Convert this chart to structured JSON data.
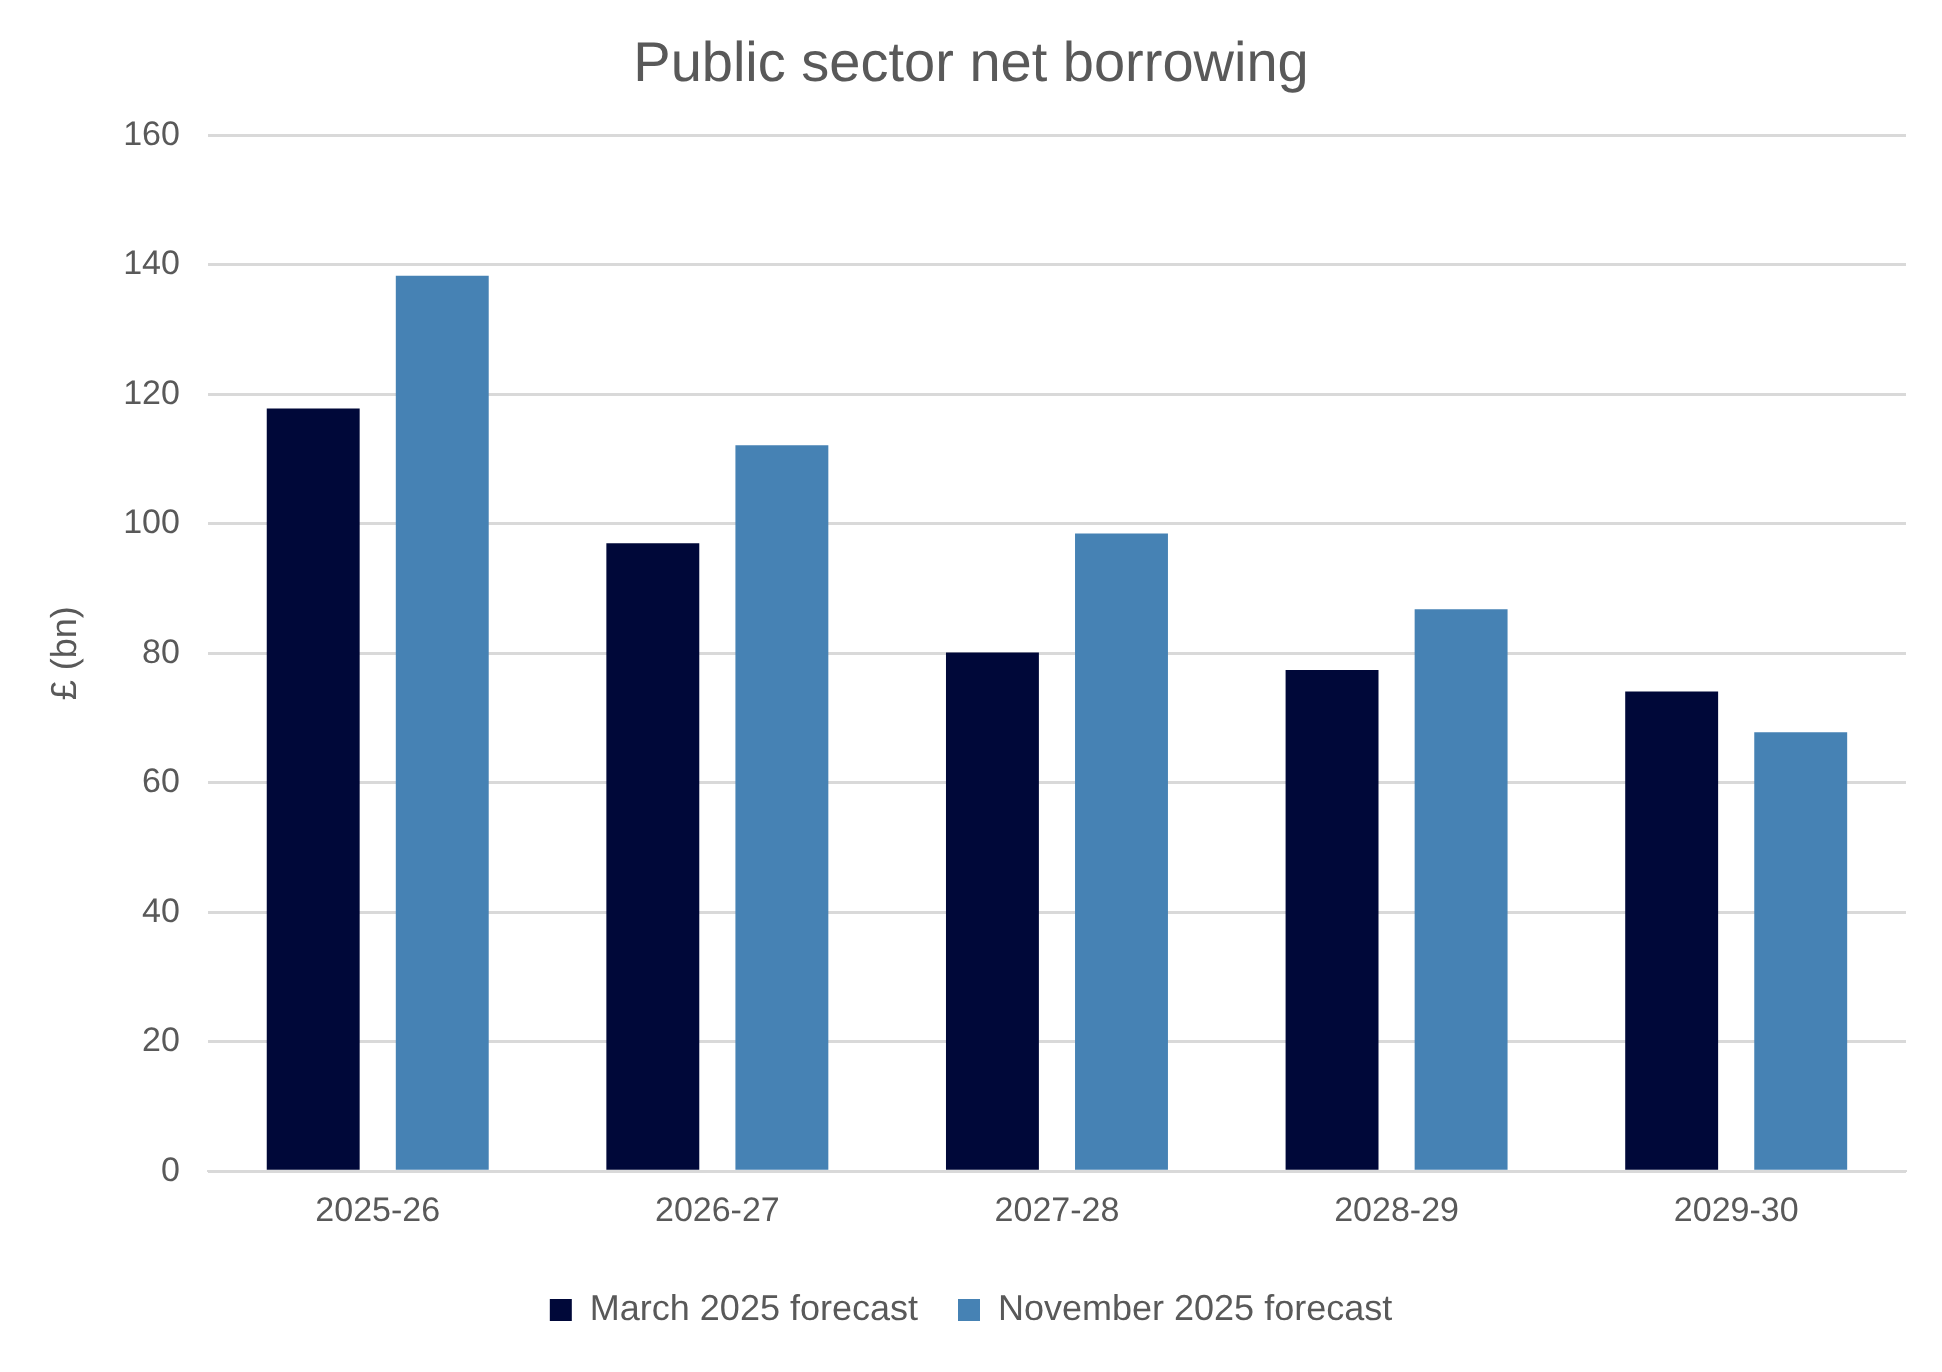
{
  "chart_data": {
    "type": "bar",
    "title": "Public sector net borrowing",
    "ylabel": "£ (bn)",
    "categories": [
      "2025-26",
      "2026-27",
      "2027-28",
      "2028-29",
      "2029-30"
    ],
    "series": [
      {
        "name": "March 2025 forecast",
        "color": "#000839",
        "values": [
          117.8,
          97.0,
          80.1,
          77.4,
          74.1
        ]
      },
      {
        "name": "November 2025 forecast",
        "color": "#4682b4",
        "values": [
          138.3,
          112.1,
          98.5,
          86.8,
          67.8
        ]
      }
    ],
    "ylim": [
      0,
      160
    ],
    "yticks": [
      0,
      20,
      40,
      60,
      80,
      100,
      120,
      140,
      160
    ],
    "grid": "y",
    "legend": "bottom"
  }
}
